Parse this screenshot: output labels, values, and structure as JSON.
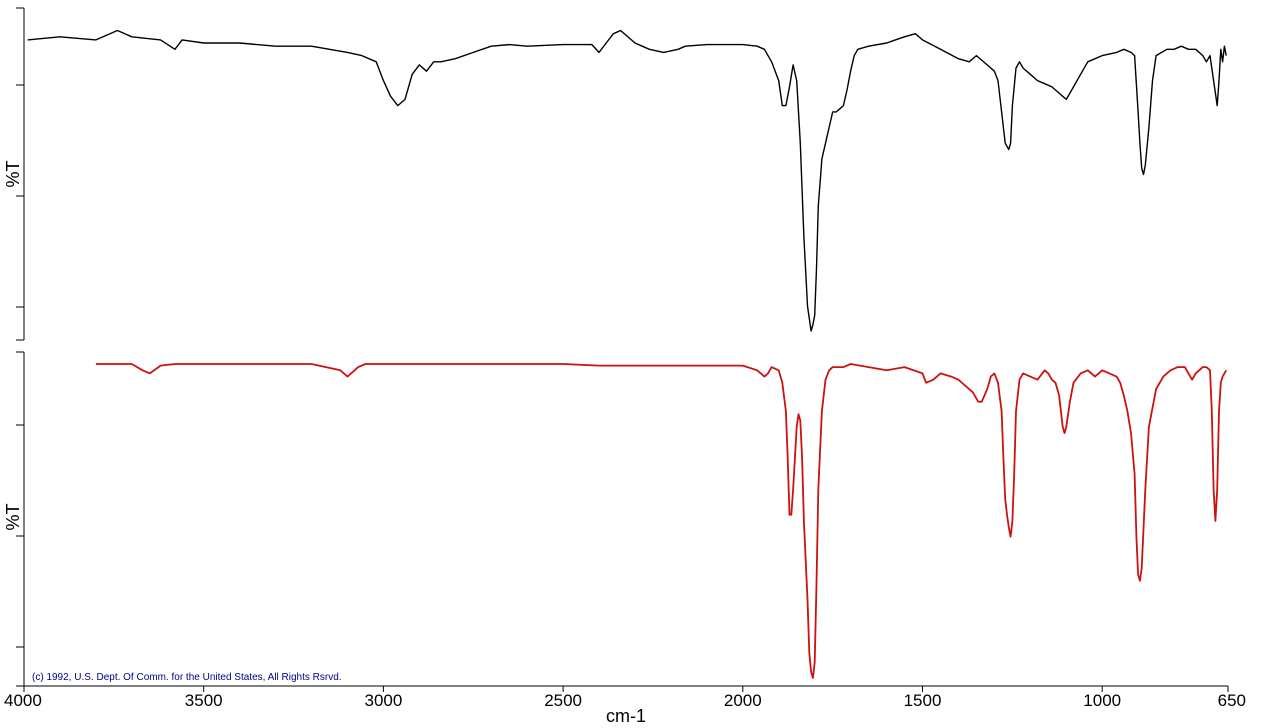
{
  "chart_data": {
    "type": "line",
    "xlabel": "cm-1",
    "xlim": [
      4000,
      650
    ],
    "x_ticks": [
      "4000",
      "3500",
      "3000",
      "2500",
      "2000",
      "1500",
      "1000",
      "650"
    ],
    "x_tick_values": [
      4000,
      3500,
      3000,
      2500,
      2000,
      1500,
      1000,
      650
    ],
    "grid": false,
    "copyright": "(c) 1992, U.S. Dept. Of Comm. for the United States, All Rights Rsrvd.",
    "copyright_color": "#00008b",
    "panels": [
      {
        "ylabel": "%T",
        "ylim": [
          0,
          100
        ],
        "color": "#000000",
        "series": [
          {
            "x": [
              3990,
              3900,
              3800,
              3740,
              3700,
              3620,
              3580,
              3560,
              3500,
              3400,
              3300,
              3200,
              3150,
              3100,
              3060,
              3020,
              3000,
              2980,
              2960,
              2940,
              2920,
              2900,
              2880,
              2860,
              2840,
              2800,
              2750,
              2700,
              2650,
              2600,
              2500,
              2420,
              2400,
              2380,
              2360,
              2340,
              2300,
              2280,
              2260,
              2220,
              2180,
              2160,
              2100,
              2050,
              2000,
              1960,
              1940,
              1920,
              1900,
              1890,
              1880,
              1870,
              1860,
              1850,
              1840,
              1830,
              1820,
              1810,
              1805,
              1800,
              1795,
              1790,
              1780,
              1770,
              1760,
              1750,
              1740,
              1730,
              1720,
              1710,
              1700,
              1690,
              1680,
              1650,
              1600,
              1550,
              1520,
              1500,
              1450,
              1400,
              1370,
              1350,
              1320,
              1300,
              1290,
              1280,
              1270,
              1260,
              1255,
              1250,
              1240,
              1230,
              1220,
              1200,
              1180,
              1160,
              1140,
              1120,
              1110,
              1100,
              1080,
              1060,
              1040,
              1000,
              960,
              940,
              920,
              910,
              900,
              895,
              890,
              885,
              880,
              870,
              860,
              850,
              820,
              800,
              780,
              760,
              740,
              720,
              710,
              700,
              690,
              680,
              675,
              670,
              665,
              660,
              655
            ],
            "y": [
              93,
              94,
              93,
              96,
              94,
              93,
              90,
              93,
              92,
              92,
              91,
              91,
              90,
              89,
              88,
              86,
              80,
              75,
              72,
              74,
              82,
              85,
              83,
              86,
              86,
              87,
              89,
              91,
              91.5,
              91,
              91.5,
              91.5,
              89,
              92,
              95,
              96,
              92,
              91,
              90,
              89,
              90,
              91,
              91.5,
              91.5,
              91.5,
              91,
              90,
              86,
              80,
              72,
              72,
              78,
              85,
              80,
              60,
              30,
              8,
              0,
              2,
              5,
              20,
              40,
              55,
              60,
              65,
              70,
              70,
              71,
              72,
              77,
              83,
              88,
              90,
              91,
              92,
              94,
              95,
              93,
              90,
              87,
              86,
              88,
              85,
              83,
              80,
              70,
              60,
              58,
              60,
              72,
              84,
              86,
              84,
              82,
              80,
              79,
              78,
              76,
              75,
              74,
              78,
              82,
              86,
              88,
              89,
              90,
              89,
              88,
              70,
              60,
              52,
              50,
              53,
              65,
              80,
              88,
              90,
              90,
              91,
              90,
              90,
              88,
              86,
              88,
              80,
              72,
              80,
              90,
              86,
              91,
              88
            ]
          }
        ]
      },
      {
        "ylabel": "%T",
        "ylim": [
          0,
          100
        ],
        "color": "#cc1111",
        "series": [
          {
            "x": [
              3800,
              3700,
              3670,
              3650,
              3620,
              3580,
              3200,
              3120,
              3100,
              3090,
              3070,
              3050,
              3000,
              2500,
              2400,
              2000,
              1960,
              1950,
              1940,
              1930,
              1920,
              1900,
              1890,
              1880,
              1875,
              1870,
              1865,
              1860,
              1850,
              1845,
              1840,
              1835,
              1830,
              1820,
              1815,
              1810,
              1805,
              1800,
              1795,
              1790,
              1780,
              1770,
              1760,
              1750,
              1740,
              1720,
              1700,
              1650,
              1600,
              1550,
              1500,
              1490,
              1470,
              1450,
              1420,
              1400,
              1380,
              1360,
              1345,
              1335,
              1320,
              1310,
              1300,
              1290,
              1280,
              1275,
              1270,
              1265,
              1260,
              1255,
              1250,
              1245,
              1240,
              1230,
              1220,
              1200,
              1180,
              1160,
              1150,
              1140,
              1130,
              1120,
              1115,
              1110,
              1105,
              1100,
              1090,
              1080,
              1060,
              1040,
              1030,
              1020,
              1010,
              1000,
              980,
              960,
              950,
              940,
              930,
              920,
              910,
              905,
              900,
              895,
              890,
              880,
              870,
              850,
              830,
              810,
              790,
              770,
              760,
              750,
              740,
              730,
              720,
              710,
              700,
              695,
              690,
              685,
              680,
              675,
              670,
              665,
              660,
              655
            ],
            "y": [
              100,
              100,
              98,
              97,
              99.5,
              100,
              100,
              98,
              96,
              97,
              99,
              100,
              100,
              100,
              99.5,
              99.5,
              98,
              97,
              96,
              97,
              99,
              98,
              94,
              85,
              70,
              52,
              52,
              60,
              80,
              84,
              82,
              70,
              50,
              25,
              8,
              2,
              0,
              5,
              30,
              60,
              85,
              95,
              98,
              99,
              99,
              99,
              100,
              99,
              98,
              99,
              97,
              94,
              95,
              97,
              96,
              95,
              93,
              91,
              88,
              88,
              92,
              96,
              97,
              94,
              85,
              70,
              57,
              52,
              48,
              45,
              50,
              65,
              85,
              95,
              97,
              96,
              95,
              98,
              97,
              95,
              94,
              90,
              85,
              80,
              78,
              80,
              88,
              94,
              97,
              98,
              97,
              96,
              97,
              98,
              97,
              96,
              94,
              90,
              85,
              78,
              65,
              45,
              33,
              31,
              35,
              60,
              80,
              92,
              96,
              98,
              99,
              99,
              97,
              95,
              97,
              98,
              99,
              99,
              98,
              85,
              60,
              50,
              60,
              85,
              94,
              96,
              97,
              98
            ]
          }
        ]
      }
    ]
  }
}
